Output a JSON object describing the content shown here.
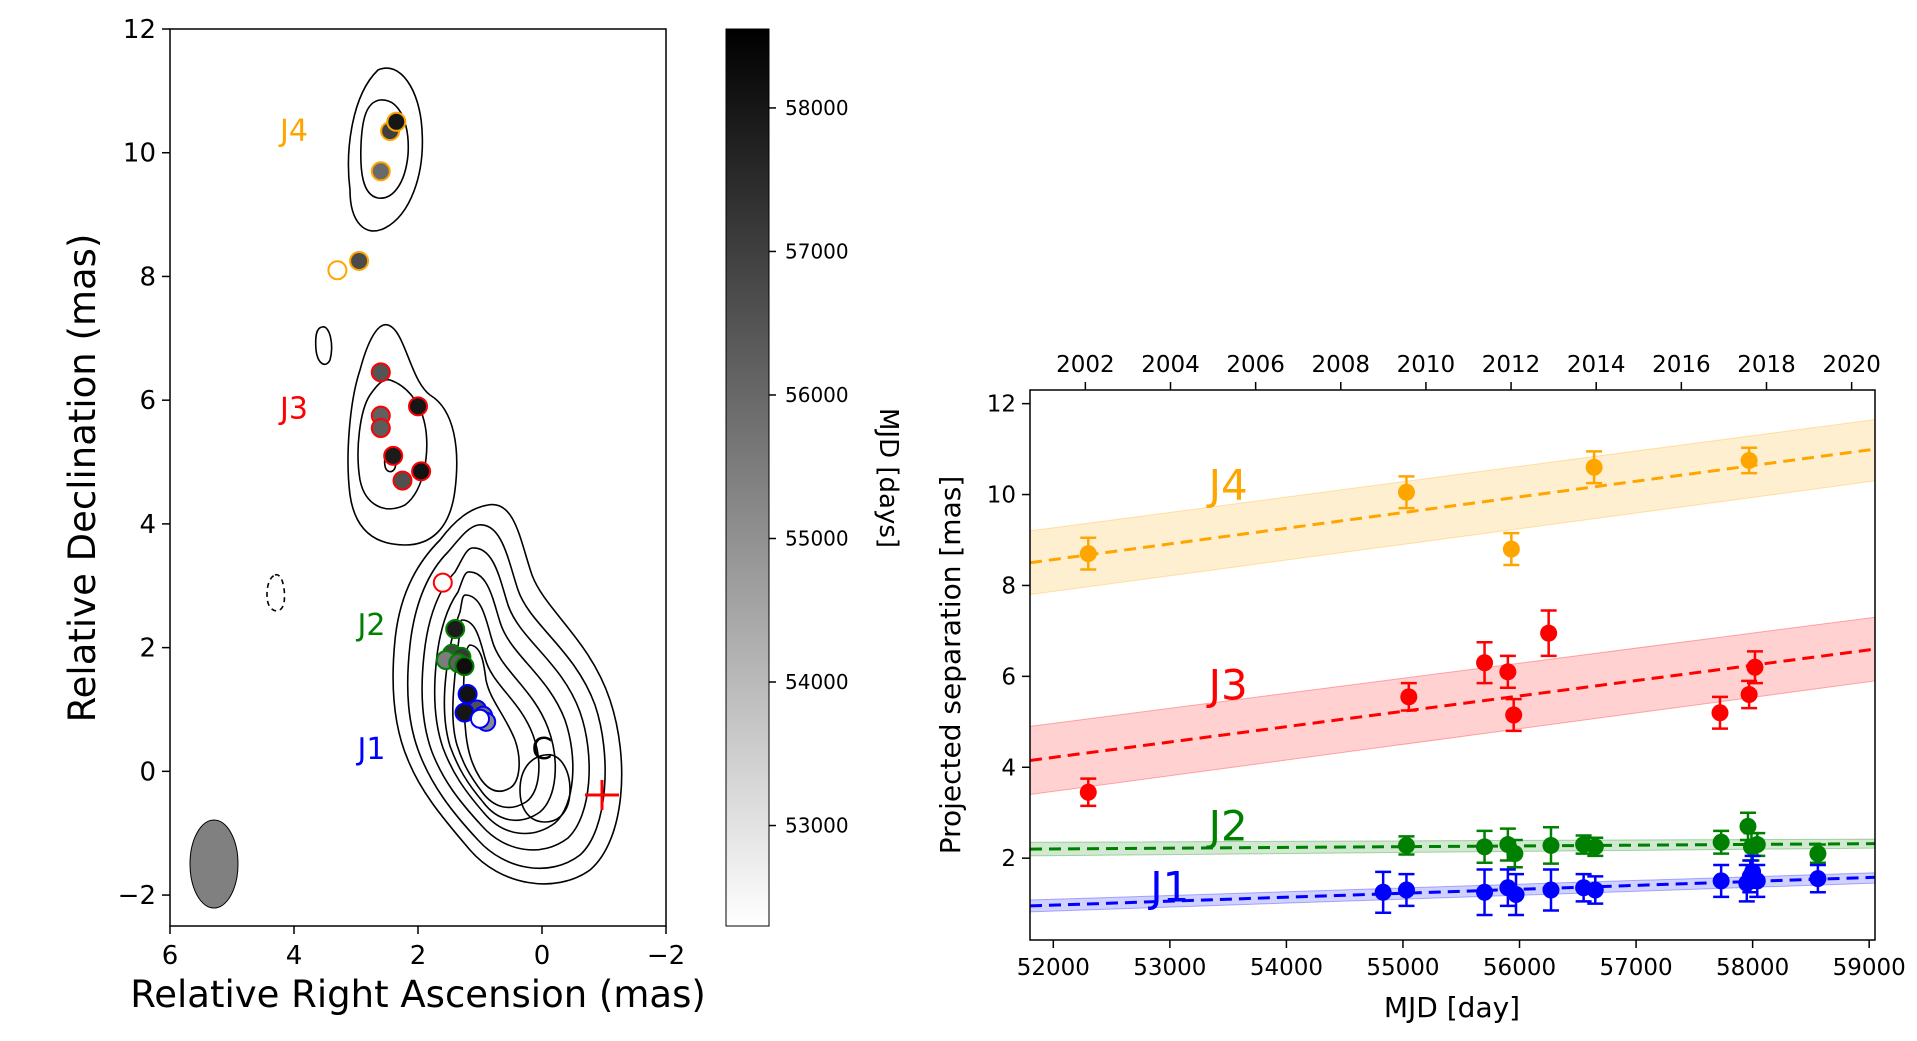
{
  "chart_data": [
    {
      "type": "scatter",
      "subtype": "radio-map-with-contours",
      "xlabel": "Relative Right Ascension (mas)",
      "ylabel": "Relative Declination (mas)",
      "xlim": [
        6,
        -2
      ],
      "ylim": [
        -2.5,
        12
      ],
      "x_ticks": [
        "6",
        "4",
        "2",
        "0",
        "−2"
      ],
      "y_ticks": [
        "−2",
        "0",
        "2",
        "4",
        "6",
        "8",
        "10",
        "12"
      ],
      "colorbar": {
        "label": "MJD [days]",
        "range": [
          52300,
          58550
        ],
        "ticks": [
          "53000",
          "54000",
          "55000",
          "56000",
          "57000",
          "58000"
        ],
        "cmap": "Greys"
      },
      "region_labels": [
        {
          "text": "J4",
          "x": 4.0,
          "y": 10.2,
          "color": "#ffa500"
        },
        {
          "text": "J3",
          "x": 4.0,
          "y": 5.7,
          "color": "#ff0000"
        },
        {
          "text": "J2",
          "x": 2.75,
          "y": 2.2,
          "color": "#008000"
        },
        {
          "text": "J1",
          "x": 2.75,
          "y": 0.2,
          "color": "#0000ff"
        },
        {
          "text": "C",
          "x": 0.0,
          "y": 0.2,
          "color": "#000000"
        }
      ],
      "series": [
        {
          "name": "J4",
          "edge": "#ffa500",
          "points": [
            {
              "x": 2.6,
              "y": 9.7,
              "mjd": 55950
            },
            {
              "x": 2.45,
              "y": 10.35,
              "mjd": 57000
            },
            {
              "x": 2.35,
              "y": 10.5,
              "mjd": 58000
            },
            {
              "x": 2.95,
              "y": 8.25,
              "mjd": 56700
            },
            {
              "x": 3.3,
              "y": 8.1,
              "mjd": null
            }
          ]
        },
        {
          "name": "J3",
          "edge": "#ff0000",
          "points": [
            {
              "x": 2.6,
              "y": 6.45,
              "mjd": 56500
            },
            {
              "x": 2.0,
              "y": 5.9,
              "mjd": 58000
            },
            {
              "x": 2.6,
              "y": 5.75,
              "mjd": 56200
            },
            {
              "x": 2.6,
              "y": 5.55,
              "mjd": 56300
            },
            {
              "x": 2.4,
              "y": 5.1,
              "mjd": 57900
            },
            {
              "x": 1.95,
              "y": 4.85,
              "mjd": 58100
            },
            {
              "x": 2.25,
              "y": 4.7,
              "mjd": 56600
            },
            {
              "x": 1.6,
              "y": 3.05,
              "mjd": null
            }
          ]
        },
        {
          "name": "J2",
          "edge": "#008000",
          "points": [
            {
              "x": 1.4,
              "y": 2.3,
              "mjd": 57900
            },
            {
              "x": 1.45,
              "y": 1.9,
              "mjd": 56800
            },
            {
              "x": 1.3,
              "y": 1.85,
              "mjd": 57200
            },
            {
              "x": 1.55,
              "y": 1.8,
              "mjd": 55500
            },
            {
              "x": 1.35,
              "y": 1.75,
              "mjd": 56200
            },
            {
              "x": 1.25,
              "y": 1.7,
              "mjd": 58200
            }
          ]
        },
        {
          "name": "J1",
          "edge": "#0000ff",
          "points": [
            {
              "x": 1.2,
              "y": 1.25,
              "mjd": 58100
            },
            {
              "x": 1.05,
              "y": 1.0,
              "mjd": 56600
            },
            {
              "x": 1.25,
              "y": 0.95,
              "mjd": 58000
            },
            {
              "x": 0.95,
              "y": 0.9,
              "mjd": 55800
            },
            {
              "x": 0.9,
              "y": 0.8,
              "mjd": 55200
            },
            {
              "x": 1.0,
              "y": 0.85,
              "mjd": null
            }
          ]
        }
      ],
      "core_marker": {
        "x": -0.9,
        "y": -0.35,
        "color": "#ff0000"
      },
      "beam": {
        "x": 5.3,
        "y": -1.5,
        "color": "#808080"
      }
    },
    {
      "type": "scatter",
      "subtype": "errorbars-with-linear-fits",
      "xlabel": "MJD [day]",
      "ylabel": "Projected separation [mas]",
      "xlim": [
        51800,
        59050
      ],
      "ylim": [
        0.2,
        12.3
      ],
      "x_ticks": [
        "52000",
        "53000",
        "54000",
        "55000",
        "56000",
        "57000",
        "58000",
        "59000"
      ],
      "y_ticks": [
        "2",
        "4",
        "6",
        "8",
        "10",
        "12"
      ],
      "top_axis_ticks": [
        "2002",
        "2004",
        "2006",
        "2008",
        "2010",
        "2012",
        "2014",
        "2016",
        "2018",
        "2020"
      ],
      "series": [
        {
          "name": "J4",
          "color": "#ffa500",
          "fit": {
            "x": [
              51800,
              59050
            ],
            "y": [
              8.5,
              11.0
            ],
            "band_lo": [
              7.8,
              10.3
            ],
            "band_hi": [
              9.2,
              11.65
            ]
          },
          "points": [
            {
              "x": 52300,
              "y": 8.7,
              "err": 0.35
            },
            {
              "x": 55030,
              "y": 10.05,
              "err": 0.35
            },
            {
              "x": 55930,
              "y": 8.8,
              "err": 0.35
            },
            {
              "x": 56640,
              "y": 10.6,
              "err": 0.35
            },
            {
              "x": 57970,
              "y": 10.75,
              "err": 0.28
            }
          ]
        },
        {
          "name": "J3",
          "color": "#ff0000",
          "fit": {
            "x": [
              51800,
              59050
            ],
            "y": [
              4.15,
              6.6
            ],
            "band_lo": [
              3.4,
              5.9
            ],
            "band_hi": [
              4.9,
              7.3
            ]
          },
          "points": [
            {
              "x": 52300,
              "y": 3.45,
              "err": 0.3
            },
            {
              "x": 55050,
              "y": 5.55,
              "err": 0.3
            },
            {
              "x": 55700,
              "y": 6.3,
              "err": 0.45
            },
            {
              "x": 55900,
              "y": 6.1,
              "err": 0.35
            },
            {
              "x": 55950,
              "y": 5.15,
              "err": 0.35
            },
            {
              "x": 56250,
              "y": 6.95,
              "err": 0.5
            },
            {
              "x": 57720,
              "y": 5.2,
              "err": 0.35
            },
            {
              "x": 57970,
              "y": 5.6,
              "err": 0.3
            },
            {
              "x": 58020,
              "y": 6.2,
              "err": 0.35
            }
          ]
        },
        {
          "name": "J2",
          "color": "#008000",
          "fit": {
            "x": [
              51800,
              59050
            ],
            "y": [
              2.2,
              2.32
            ],
            "band_lo": [
              2.05,
              2.22
            ],
            "band_hi": [
              2.35,
              2.42
            ]
          },
          "points": [
            {
              "x": 55030,
              "y": 2.28,
              "err": 0.2
            },
            {
              "x": 55700,
              "y": 2.25,
              "err": 0.35
            },
            {
              "x": 55900,
              "y": 2.3,
              "err": 0.35
            },
            {
              "x": 55960,
              "y": 2.1,
              "err": 0.3
            },
            {
              "x": 56270,
              "y": 2.28,
              "err": 0.4
            },
            {
              "x": 56550,
              "y": 2.3,
              "err": 0.2
            },
            {
              "x": 56650,
              "y": 2.25,
              "err": 0.2
            },
            {
              "x": 57730,
              "y": 2.35,
              "err": 0.25
            },
            {
              "x": 57960,
              "y": 2.7,
              "err": 0.3
            },
            {
              "x": 57990,
              "y": 2.25,
              "err": 0.3
            },
            {
              "x": 58040,
              "y": 2.3,
              "err": 0.25
            },
            {
              "x": 58560,
              "y": 2.1,
              "err": 0.2
            }
          ]
        },
        {
          "name": "J1",
          "color": "#0000ff",
          "fit": {
            "x": [
              51800,
              59050
            ],
            "y": [
              0.95,
              1.58
            ],
            "band_lo": [
              0.82,
              1.45
            ],
            "band_hi": [
              1.08,
              1.68
            ]
          },
          "points": [
            {
              "x": 54830,
              "y": 1.25,
              "err": 0.45
            },
            {
              "x": 55030,
              "y": 1.3,
              "err": 0.35
            },
            {
              "x": 55700,
              "y": 1.25,
              "err": 0.5
            },
            {
              "x": 55900,
              "y": 1.35,
              "err": 0.4
            },
            {
              "x": 55970,
              "y": 1.2,
              "err": 0.45
            },
            {
              "x": 56270,
              "y": 1.3,
              "err": 0.45
            },
            {
              "x": 56550,
              "y": 1.35,
              "err": 0.3
            },
            {
              "x": 56650,
              "y": 1.3,
              "err": 0.3
            },
            {
              "x": 57730,
              "y": 1.5,
              "err": 0.35
            },
            {
              "x": 57950,
              "y": 1.45,
              "err": 0.4
            },
            {
              "x": 57980,
              "y": 1.6,
              "err": 0.35
            },
            {
              "x": 58000,
              "y": 1.7,
              "err": 0.35
            },
            {
              "x": 58040,
              "y": 1.5,
              "err": 0.35
            },
            {
              "x": 58560,
              "y": 1.55,
              "err": 0.3
            }
          ]
        }
      ],
      "series_labels": [
        {
          "text": "J4",
          "x": 53500,
          "y": 10.2,
          "color": "#ffa500"
        },
        {
          "text": "J3",
          "x": 53500,
          "y": 5.8,
          "color": "#ff0000"
        },
        {
          "text": "J2",
          "x": 53500,
          "y": 2.7,
          "color": "#008000"
        },
        {
          "text": "J1",
          "x": 53000,
          "y": 1.35,
          "color": "#0000ff"
        }
      ]
    }
  ]
}
